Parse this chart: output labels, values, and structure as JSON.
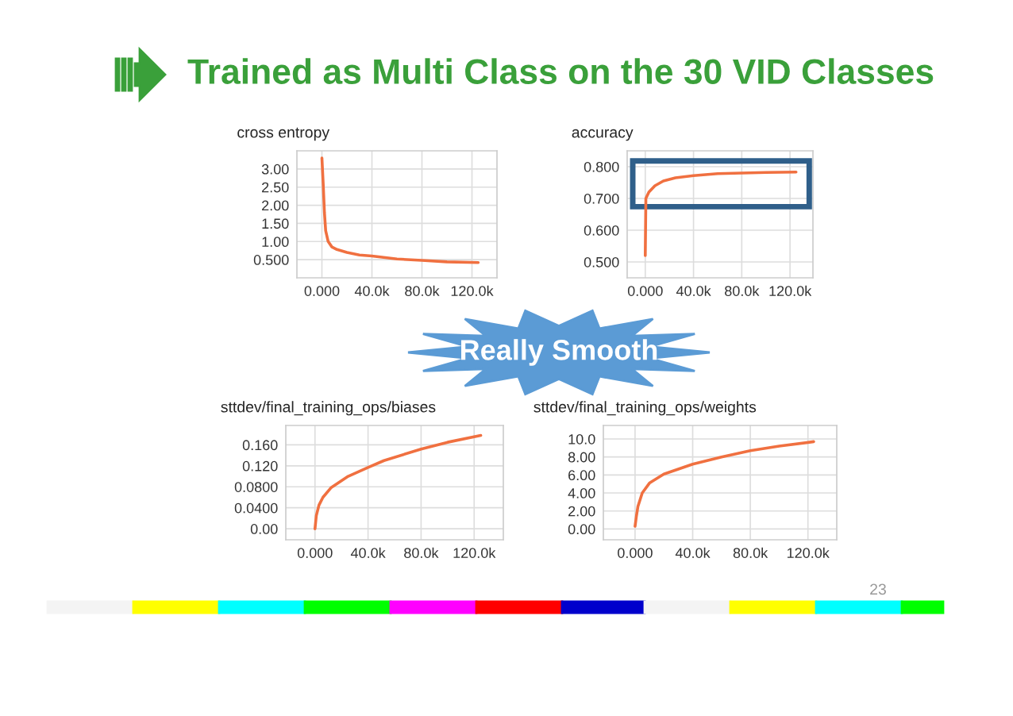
{
  "chart_data": [
    {
      "type": "line",
      "title": "cross entropy",
      "annotations": [
        "Trained as Multi Class on the 30 VID Classes"
      ],
      "x": [
        0,
        1000,
        2000,
        3000,
        5000,
        8000,
        12000,
        20000,
        30000,
        40000,
        60000,
        80000,
        100000,
        125000
      ],
      "series": [
        {
          "color": "#f07040",
          "values": [
            3.3,
            2.6,
            1.8,
            1.3,
            1.0,
            0.85,
            0.78,
            0.7,
            0.63,
            0.6,
            0.52,
            0.48,
            0.44,
            0.42
          ]
        }
      ],
      "xlim": [
        -20000,
        140000
      ],
      "ylim": [
        0,
        3.5
      ],
      "grid": true,
      "xticks": [
        {
          "value": 0,
          "label": "0.000"
        },
        {
          "value": 40000,
          "label": "40.0k"
        },
        {
          "value": 80000,
          "label": "80.0k"
        },
        {
          "value": 120000,
          "label": "120.0k"
        }
      ],
      "yticks": [
        {
          "value": 0.5,
          "label": "0.500"
        },
        {
          "value": 1.0,
          "label": "1.00"
        },
        {
          "value": 1.5,
          "label": "1.50"
        },
        {
          "value": 2.0,
          "label": "2.00"
        },
        {
          "value": 2.5,
          "label": "2.50"
        },
        {
          "value": 3.0,
          "label": "3.00"
        }
      ]
    },
    {
      "type": "line",
      "title": "accuracy",
      "annotations": [
        "Really Smooth"
      ],
      "x": [
        0,
        500,
        3000,
        8000,
        15000,
        25000,
        40000,
        60000,
        80000,
        100000,
        125000
      ],
      "series": [
        {
          "color": "#f07040",
          "values": [
            0.52,
            0.7,
            0.72,
            0.74,
            0.755,
            0.765,
            0.772,
            0.778,
            0.78,
            0.782,
            0.783
          ]
        }
      ],
      "xlim": [
        -15000,
        139000
      ],
      "ylim": [
        0.45,
        0.85
      ],
      "grid": true,
      "xticks": [
        {
          "value": 0,
          "label": "0.000"
        },
        {
          "value": 40000,
          "label": "40.0k"
        },
        {
          "value": 80000,
          "label": "80.0k"
        },
        {
          "value": 120000,
          "label": "120.0k"
        }
      ],
      "yticks": [
        {
          "value": 0.5,
          "label": "0.500"
        },
        {
          "value": 0.6,
          "label": "0.600"
        },
        {
          "value": 0.7,
          "label": "0.700"
        },
        {
          "value": 0.8,
          "label": "0.800"
        }
      ]
    },
    {
      "type": "line",
      "title": "sttdev/final_training_ops/biases",
      "x": [
        0,
        1000,
        3000,
        6000,
        12000,
        25000,
        40000,
        52000,
        80000,
        100000,
        125000
      ],
      "series": [
        {
          "color": "#f07040",
          "values": [
            0,
            0.025,
            0.045,
            0.06,
            0.078,
            0.1,
            0.117,
            0.13,
            0.152,
            0.165,
            0.178
          ]
        }
      ],
      "xlim": [
        -22000,
        142000
      ],
      "ylim": [
        -0.021,
        0.197
      ],
      "grid": true,
      "xticks": [
        {
          "value": 0,
          "label": "0.000"
        },
        {
          "value": 40000,
          "label": "40.0k"
        },
        {
          "value": 80000,
          "label": "80.0k"
        },
        {
          "value": 120000,
          "label": "120.0k"
        }
      ],
      "yticks": [
        {
          "value": 0,
          "label": "0.00"
        },
        {
          "value": 0.04,
          "label": "0.0400"
        },
        {
          "value": 0.08,
          "label": "0.0800"
        },
        {
          "value": 0.12,
          "label": "0.120"
        },
        {
          "value": 0.16,
          "label": "0.160"
        }
      ]
    },
    {
      "type": "line",
      "title": "sttdev/final_training_ops/weights",
      "annotations": [
        "23"
      ],
      "x": [
        0,
        1000,
        2000,
        5000,
        10000,
        20000,
        40000,
        60000,
        80000,
        100000,
        124000
      ],
      "series": [
        {
          "color": "#f07040",
          "values": [
            0.3,
            1.5,
            2.5,
            4.0,
            5.1,
            6.1,
            7.2,
            8.0,
            8.7,
            9.2,
            9.7
          ]
        }
      ],
      "xlim": [
        -22000,
        140000
      ],
      "ylim": [
        -1.2,
        11.5
      ],
      "grid": true,
      "xticks": [
        {
          "value": 0,
          "label": "0.000"
        },
        {
          "value": 40000,
          "label": "40.0k"
        },
        {
          "value": 80000,
          "label": "80.0k"
        },
        {
          "value": 120000,
          "label": "120.0k"
        }
      ],
      "yticks": [
        {
          "value": 0,
          "label": "0.00"
        },
        {
          "value": 2,
          "label": "2.00"
        },
        {
          "value": 4,
          "label": "4.00"
        },
        {
          "value": 6,
          "label": "6.00"
        },
        {
          "value": 8,
          "label": "8.00"
        },
        {
          "value": 10,
          "label": "10.0"
        }
      ]
    }
  ]
}
